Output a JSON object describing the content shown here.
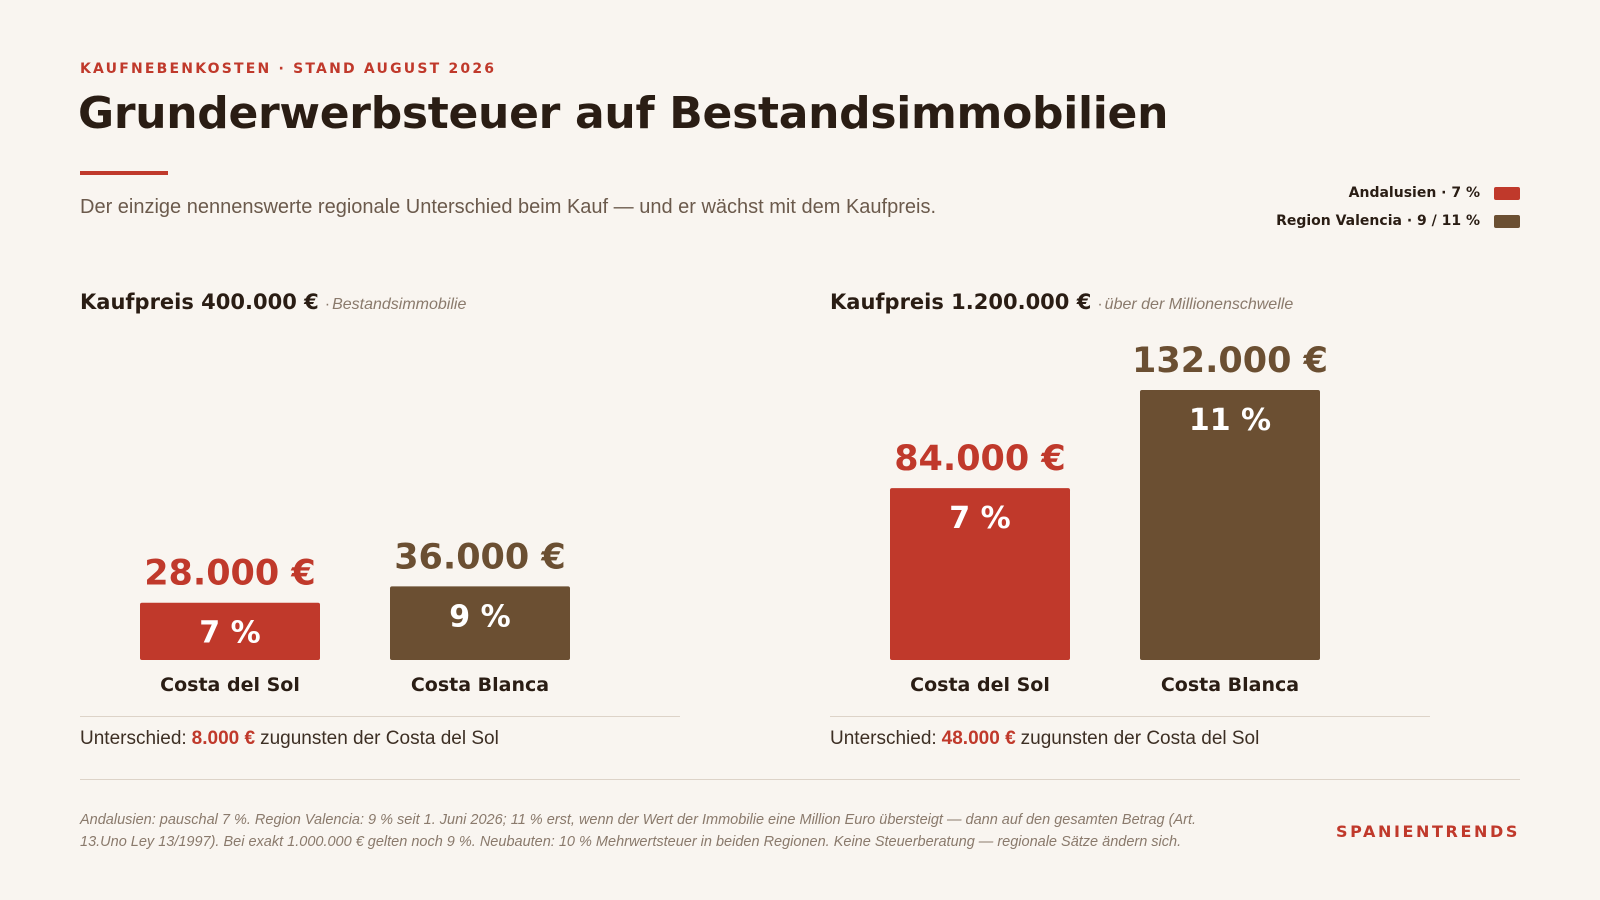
{
  "header": {
    "kicker": "KAUFNEBENKOSTEN · STAND AUGUST 2026",
    "title": "Grunderwerbsteuer auf Bestandsimmobilien",
    "subtitle": "Der einzige nennenswerte regionale Unterschied beim Kauf — und er wächst mit dem Kaufpreis."
  },
  "legend": [
    {
      "label": "Andalusien · 7 %",
      "color": "#c0392b"
    },
    {
      "label": "Region Valencia · 9 / 11 %",
      "color": "#6b4f32"
    }
  ],
  "panels": [
    {
      "title": "Kaufpreis 400.000 €",
      "note": "Bestandsimmobilie",
      "difference_prefix": "Unterschied:",
      "difference_value": "8.000 €",
      "difference_suffix": "zugunsten der Costa del Sol"
    },
    {
      "title": "Kaufpreis 1.200.000 €",
      "note": "über der Millionenschwelle",
      "difference_prefix": "Unterschied:",
      "difference_value": "48.000 €",
      "difference_suffix": "zugunsten der Costa del Sol"
    }
  ],
  "separator": "·",
  "chart_data": [
    {
      "type": "bar",
      "title": "Kaufpreis 400.000 €",
      "categories": [
        "Costa del Sol",
        "Costa Blanca"
      ],
      "values": [
        28000,
        36000
      ],
      "value_labels": [
        "28.000 €",
        "36.000 €"
      ],
      "bar_labels": [
        "7 %",
        "9 %"
      ],
      "colors": [
        "#c0392b",
        "#6b4f32"
      ],
      "ylim": [
        0,
        132000
      ],
      "grid": false
    },
    {
      "type": "bar",
      "title": "Kaufpreis 1.200.000 €",
      "categories": [
        "Costa del Sol",
        "Costa Blanca"
      ],
      "values": [
        84000,
        132000
      ],
      "value_labels": [
        "84.000 €",
        "132.000 €"
      ],
      "bar_labels": [
        "7 %",
        "11 %"
      ],
      "colors": [
        "#c0392b",
        "#6b4f32"
      ],
      "ylim": [
        0,
        132000
      ],
      "grid": false
    }
  ],
  "footnote": "Andalusien: pauschal 7 %. Region Valencia: 9 % seit 1. Juni 2026; 11 % erst, wenn der Wert der Immobilie eine Million Euro übersteigt — dann auf den gesamten Betrag (Art. 13.Uno Ley 13/1997). Bei exakt 1.000.000 € gelten noch 9 %. Neubauten: 10 % Mehrwertsteuer in beiden Regionen. Keine Steuerberatung — regionale Sätze ändern sich.",
  "brand": "SPANIENTRENDS"
}
